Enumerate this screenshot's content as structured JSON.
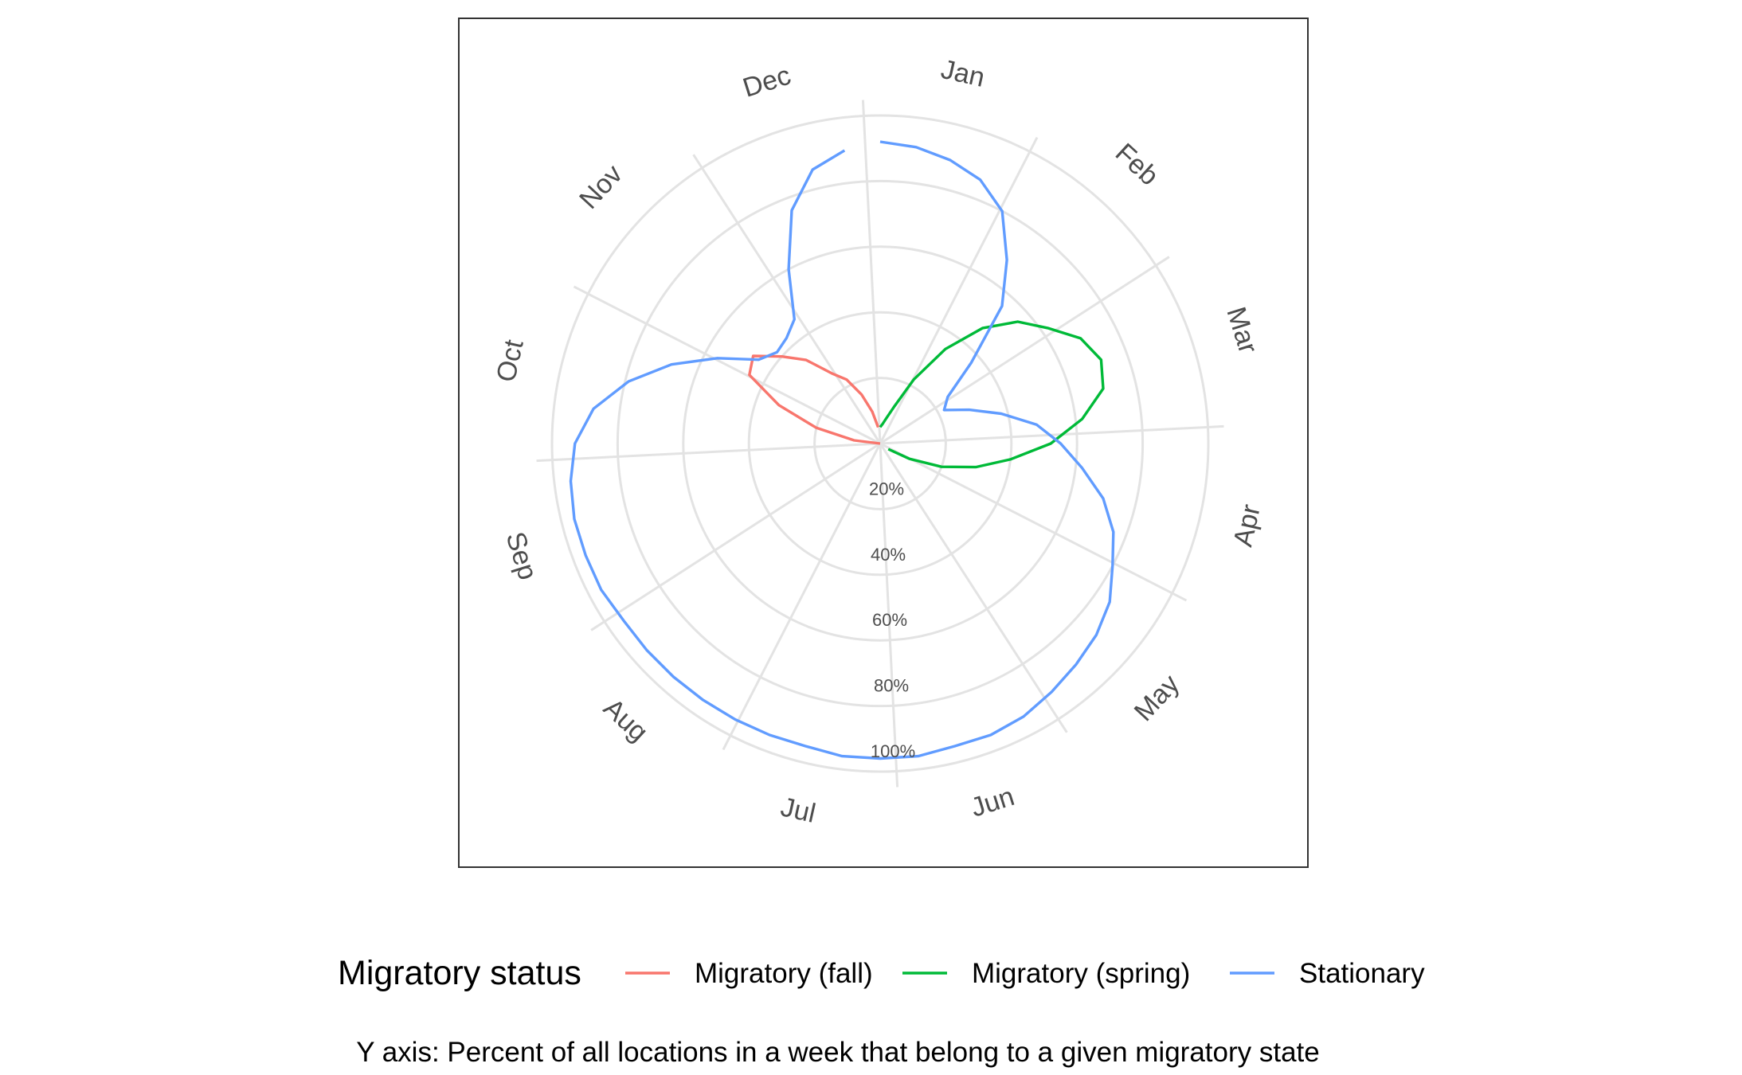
{
  "chart_data": {
    "type": "line",
    "coord": "polar",
    "theta_categories": [
      "Jan",
      "Feb",
      "Mar",
      "Apr",
      "May",
      "Jun",
      "Jul",
      "Aug",
      "Sep",
      "Oct",
      "Nov",
      "Dec"
    ],
    "radial_ticks": [
      "20%",
      "40%",
      "60%",
      "80%",
      "100%"
    ],
    "radial_range": [
      0,
      100
    ],
    "grid": true,
    "legend": {
      "title": "Migratory status",
      "position": "bottom",
      "entries": [
        "Migratory (fall)",
        "Migratory (spring)",
        "Stationary"
      ]
    },
    "caption": "Y axis: Percent of all locations in a week that belong to a given migratory state",
    "x_unit": "week",
    "series": [
      {
        "name": "Migratory (fall)",
        "color": "#F8766D",
        "x": [
          40,
          41,
          42,
          43,
          44,
          45,
          46,
          47,
          48,
          49,
          50,
          51,
          52
        ],
        "y": [
          0,
          8,
          20,
          33,
          45,
          47,
          40,
          34,
          26,
          22,
          16,
          10,
          5
        ]
      },
      {
        "name": "Migratory (spring)",
        "color": "#00BA38",
        "x": [
          1,
          2,
          3,
          4,
          5,
          6,
          7,
          8,
          9,
          10,
          11,
          12,
          13,
          14,
          15,
          16,
          17,
          18,
          19
        ],
        "y": [
          5,
          6,
          8,
          12,
          22,
          35,
          47,
          56,
          62,
          69,
          72,
          70,
          62,
          52,
          40,
          30,
          20,
          10,
          3
        ]
      },
      {
        "name": "Stationary",
        "color": "#619CFF",
        "x": [
          1,
          2,
          3,
          4,
          5,
          6,
          7,
          8,
          9,
          10,
          11,
          12,
          13,
          14,
          15,
          16,
          17,
          18,
          19,
          20,
          21,
          22,
          23,
          24,
          25,
          26,
          27,
          28,
          29,
          30,
          31,
          32,
          33,
          34,
          35,
          36,
          37,
          38,
          39,
          40,
          41,
          42,
          43,
          44,
          45,
          46,
          47,
          48,
          49,
          50,
          51,
          52
        ],
        "y": [
          92,
          91,
          89,
          86,
          80,
          68,
          56,
          37,
          25,
          22,
          29,
          38,
          48,
          55,
          62,
          70,
          76,
          80,
          85,
          88,
          90,
          92,
          94,
          95,
          95,
          96,
          96,
          96,
          95,
          95,
          95,
          95,
          95,
          95,
          95,
          96,
          96,
          96,
          95,
          93,
          88,
          79,
          68,
          56,
          45,
          42,
          43,
          46,
          60,
          76,
          86,
          90
        ]
      }
    ]
  }
}
